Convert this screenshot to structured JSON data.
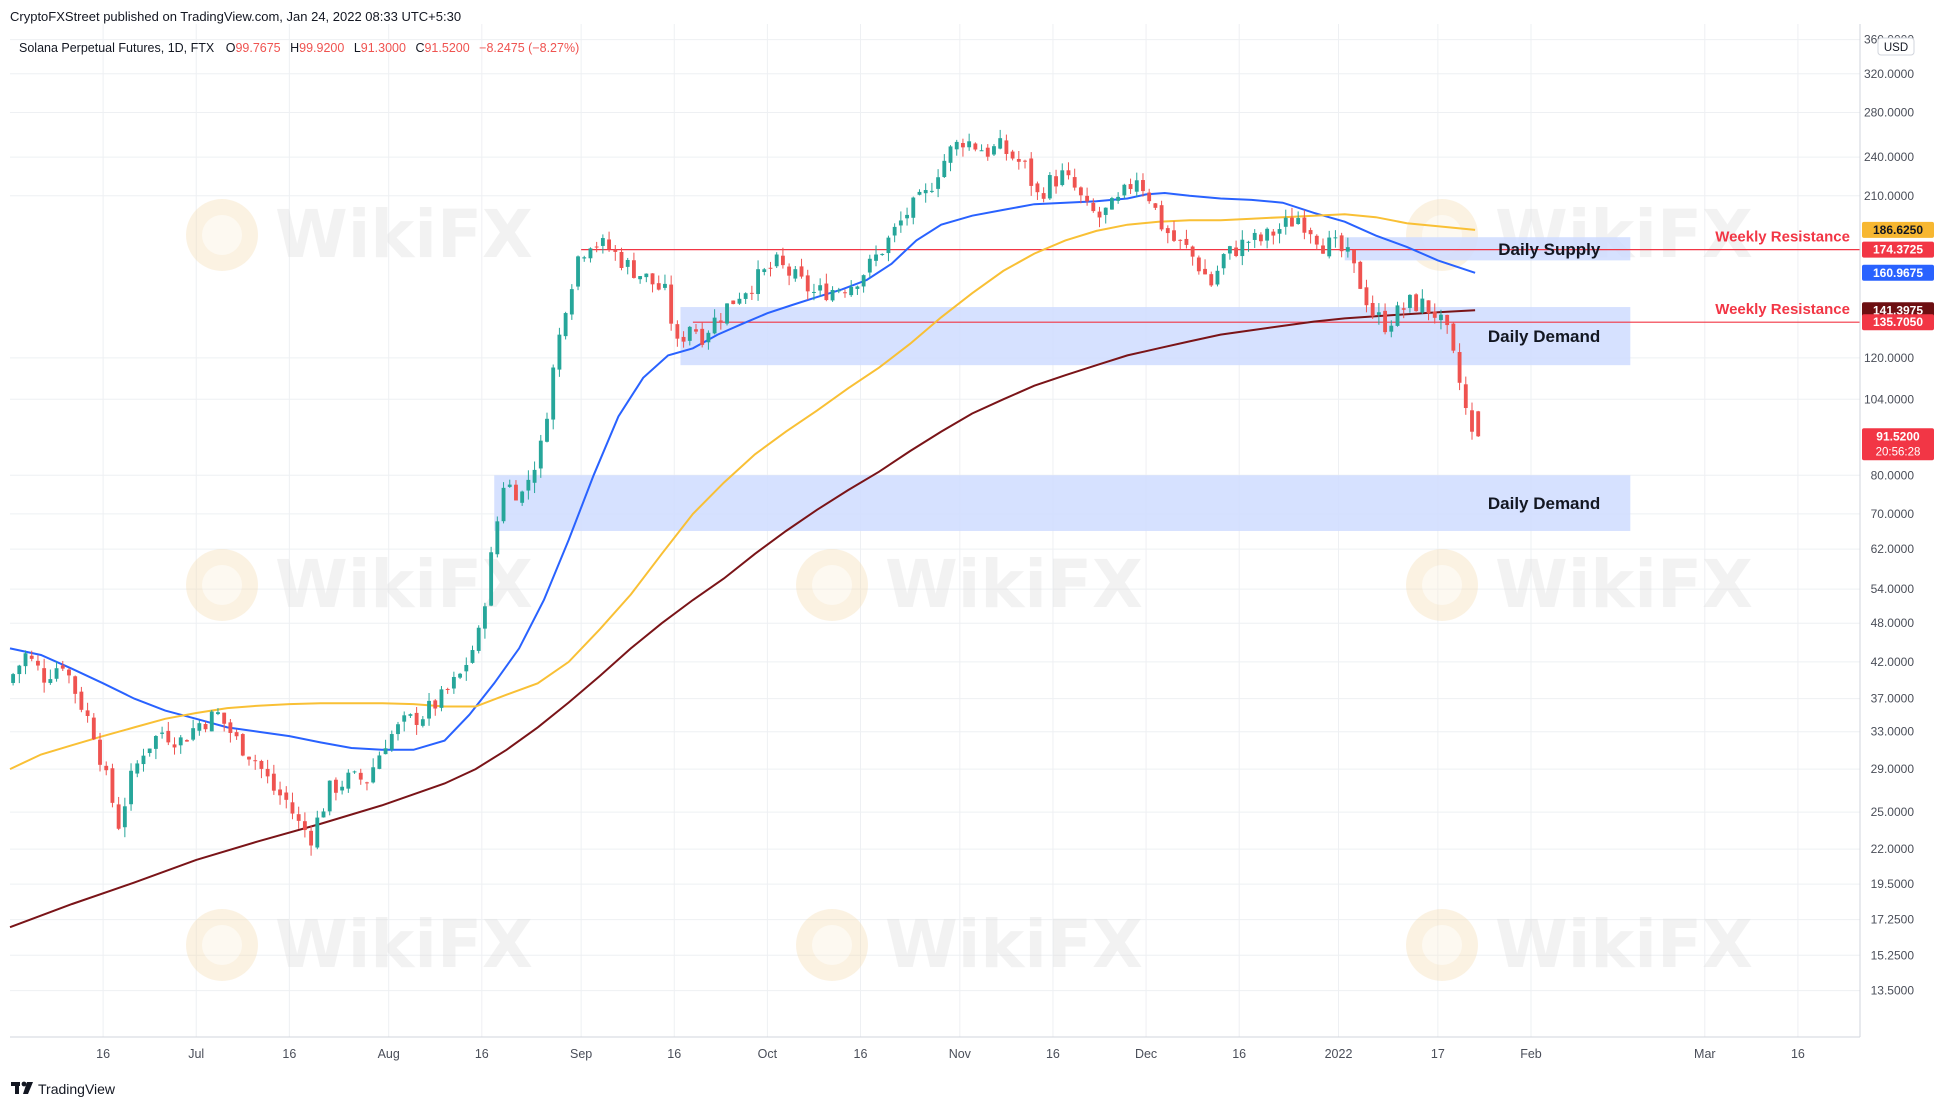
{
  "header": {
    "published": "CryptoFXStreet published on TradingView.com, Jan 24, 2022 08:33 UTC+5:30",
    "symbol": "Solana Perpetual Futures, 1D, FTX",
    "o_label": "O",
    "o": "99.7675",
    "h_label": "H",
    "h": "99.9200",
    "l_label": "L",
    "l": "91.3000",
    "c_label": "C",
    "c": "91.5200",
    "change": "−8.2475 (−8.27%)"
  },
  "footer": {
    "brand": "TradingView"
  },
  "watermark": {
    "text": "WikiFX"
  },
  "chart_data": {
    "type": "candlestick",
    "y_scale": "log",
    "ylim": [
      11.5,
      380
    ],
    "currency": "USD",
    "grid": true,
    "y_ticks": [
      13.5,
      15.25,
      17.25,
      19.5,
      22,
      25,
      29,
      33,
      37,
      42,
      48,
      54,
      62,
      70,
      80,
      104,
      120,
      210,
      240,
      280,
      320,
      360
    ],
    "y_tick_labels": [
      "13.5000",
      "15.2500",
      "17.2500",
      "19.5000",
      "22.0000",
      "25.0000",
      "29.0000",
      "33.0000",
      "37.0000",
      "42.0000",
      "48.0000",
      "54.0000",
      "62.0000",
      "70.0000",
      "80.0000",
      "104.0000",
      "120.0000",
      "210.0000",
      "240.0000",
      "280.0000",
      "320.0000",
      "360.0000"
    ],
    "x_ticks": [
      {
        "d": 15,
        "label": "16"
      },
      {
        "d": 30,
        "label": "Jul"
      },
      {
        "d": 45,
        "label": "16"
      },
      {
        "d": 61,
        "label": "Aug"
      },
      {
        "d": 76,
        "label": "16"
      },
      {
        "d": 92,
        "label": "Sep"
      },
      {
        "d": 107,
        "label": "16"
      },
      {
        "d": 122,
        "label": "Oct"
      },
      {
        "d": 137,
        "label": "16"
      },
      {
        "d": 153,
        "label": "Nov"
      },
      {
        "d": 168,
        "label": "16"
      },
      {
        "d": 183,
        "label": "Dec"
      },
      {
        "d": 198,
        "label": "16"
      },
      {
        "d": 214,
        "label": "2022"
      },
      {
        "d": 230,
        "label": "17"
      },
      {
        "d": 245,
        "label": "Feb"
      },
      {
        "d": 273,
        "label": "Mar"
      },
      {
        "d": 288,
        "label": "16"
      }
    ],
    "x_range_days": [
      0,
      298
    ],
    "price_points": [
      [
        0,
        39
      ],
      [
        3,
        43
      ],
      [
        6,
        40
      ],
      [
        9,
        42
      ],
      [
        11,
        38
      ],
      [
        14,
        33
      ],
      [
        16,
        28
      ],
      [
        18,
        24
      ],
      [
        20,
        28
      ],
      [
        22,
        31
      ],
      [
        25,
        33
      ],
      [
        28,
        32
      ],
      [
        31,
        34
      ],
      [
        34,
        35
      ],
      [
        37,
        32
      ],
      [
        40,
        30
      ],
      [
        43,
        27
      ],
      [
        45,
        26
      ],
      [
        47,
        24
      ],
      [
        49,
        23
      ],
      [
        52,
        27
      ],
      [
        55,
        28
      ],
      [
        58,
        28
      ],
      [
        61,
        32
      ],
      [
        64,
        34
      ],
      [
        67,
        35
      ],
      [
        70,
        37
      ],
      [
        73,
        40
      ],
      [
        76,
        46
      ],
      [
        78,
        60
      ],
      [
        80,
        78
      ],
      [
        83,
        75
      ],
      [
        86,
        88
      ],
      [
        88,
        115
      ],
      [
        90,
        145
      ],
      [
        92,
        170
      ],
      [
        94,
        180
      ],
      [
        97,
        175
      ],
      [
        100,
        165
      ],
      [
        103,
        158
      ],
      [
        106,
        150
      ],
      [
        108,
        125
      ],
      [
        110,
        135
      ],
      [
        112,
        130
      ],
      [
        115,
        140
      ],
      [
        118,
        150
      ],
      [
        121,
        158
      ],
      [
        124,
        166
      ],
      [
        127,
        158
      ],
      [
        130,
        150
      ],
      [
        133,
        152
      ],
      [
        136,
        155
      ],
      [
        139,
        165
      ],
      [
        142,
        180
      ],
      [
        145,
        198
      ],
      [
        148,
        210
      ],
      [
        150,
        230
      ],
      [
        152,
        245
      ],
      [
        154,
        255
      ],
      [
        156,
        250
      ],
      [
        158,
        245
      ],
      [
        160,
        248
      ],
      [
        162,
        240
      ],
      [
        164,
        232
      ],
      [
        166,
        210
      ],
      [
        168,
        220
      ],
      [
        170,
        225
      ],
      [
        172,
        215
      ],
      [
        174,
        200
      ],
      [
        176,
        195
      ],
      [
        179,
        205
      ],
      [
        182,
        225
      ],
      [
        184,
        210
      ],
      [
        186,
        190
      ],
      [
        188,
        180
      ],
      [
        190,
        175
      ],
      [
        192,
        165
      ],
      [
        194,
        155
      ],
      [
        196,
        170
      ],
      [
        198,
        175
      ],
      [
        200,
        180
      ],
      [
        202,
        180
      ],
      [
        204,
        185
      ],
      [
        206,
        190
      ],
      [
        208,
        195
      ],
      [
        210,
        188
      ],
      [
        212,
        178
      ],
      [
        214,
        176
      ],
      [
        216,
        170
      ],
      [
        218,
        155
      ],
      [
        220,
        140
      ],
      [
        222,
        135
      ],
      [
        224,
        140
      ],
      [
        226,
        145
      ],
      [
        228,
        144
      ],
      [
        230,
        140
      ],
      [
        232,
        130
      ],
      [
        234,
        110
      ],
      [
        235,
        100
      ],
      [
        236,
        91.5
      ]
    ],
    "last_candle": {
      "date": "Jan 24, 2022",
      "open": 99.7675,
      "high": 99.92,
      "low": 91.3,
      "close": 91.52
    },
    "moving_averages": [
      {
        "color": "#2962ff",
        "points": [
          [
            0,
            44
          ],
          [
            5,
            43
          ],
          [
            10,
            41
          ],
          [
            15,
            39
          ],
          [
            20,
            37
          ],
          [
            25,
            35.5
          ],
          [
            30,
            34.5
          ],
          [
            35,
            33.5
          ],
          [
            40,
            33
          ],
          [
            45,
            32.5
          ],
          [
            50,
            31.8
          ],
          [
            55,
            31.2
          ],
          [
            60,
            31
          ],
          [
            65,
            31
          ],
          [
            70,
            32
          ],
          [
            74,
            35
          ],
          [
            78,
            39
          ],
          [
            82,
            44
          ],
          [
            86,
            52
          ],
          [
            90,
            64
          ],
          [
            94,
            80
          ],
          [
            98,
            98
          ],
          [
            102,
            112
          ],
          [
            106,
            121
          ],
          [
            110,
            124
          ],
          [
            114,
            130
          ],
          [
            118,
            135
          ],
          [
            122,
            140
          ],
          [
            126,
            144
          ],
          [
            130,
            148
          ],
          [
            134,
            152
          ],
          [
            138,
            157
          ],
          [
            142,
            166
          ],
          [
            146,
            180
          ],
          [
            150,
            190
          ],
          [
            155,
            196
          ],
          [
            160,
            200
          ],
          [
            165,
            204
          ],
          [
            170,
            205
          ],
          [
            175,
            206
          ],
          [
            180,
            208
          ],
          [
            183,
            211
          ],
          [
            186,
            212
          ],
          [
            190,
            210
          ],
          [
            195,
            208
          ],
          [
            200,
            207
          ],
          [
            205,
            205
          ],
          [
            210,
            198
          ],
          [
            215,
            192
          ],
          [
            220,
            183
          ],
          [
            225,
            176
          ],
          [
            230,
            168
          ],
          [
            236,
            160.97
          ]
        ]
      },
      {
        "color": "#f9c035",
        "points": [
          [
            0,
            29
          ],
          [
            5,
            30.5
          ],
          [
            10,
            31.5
          ],
          [
            15,
            32.5
          ],
          [
            20,
            33.5
          ],
          [
            25,
            34.5
          ],
          [
            30,
            35.2
          ],
          [
            35,
            35.8
          ],
          [
            40,
            36.1
          ],
          [
            45,
            36.3
          ],
          [
            50,
            36.4
          ],
          [
            55,
            36.4
          ],
          [
            60,
            36.4
          ],
          [
            65,
            36.3
          ],
          [
            70,
            36
          ],
          [
            75,
            36
          ],
          [
            80,
            37.5
          ],
          [
            85,
            39
          ],
          [
            90,
            42
          ],
          [
            95,
            47
          ],
          [
            100,
            53
          ],
          [
            105,
            61
          ],
          [
            110,
            70
          ],
          [
            115,
            78
          ],
          [
            120,
            86
          ],
          [
            125,
            93
          ],
          [
            130,
            100
          ],
          [
            135,
            108
          ],
          [
            140,
            116
          ],
          [
            145,
            126
          ],
          [
            150,
            138
          ],
          [
            155,
            150
          ],
          [
            160,
            162
          ],
          [
            165,
            172
          ],
          [
            170,
            180
          ],
          [
            175,
            186
          ],
          [
            180,
            190
          ],
          [
            185,
            192
          ],
          [
            190,
            193
          ],
          [
            195,
            193
          ],
          [
            200,
            194
          ],
          [
            205,
            195
          ],
          [
            210,
            196
          ],
          [
            215,
            197
          ],
          [
            220,
            195
          ],
          [
            225,
            191
          ],
          [
            230,
            189
          ],
          [
            236,
            186.63
          ]
        ]
      },
      {
        "color": "#7a1418",
        "points": [
          [
            0,
            16.8
          ],
          [
            10,
            18.2
          ],
          [
            20,
            19.6
          ],
          [
            30,
            21.2
          ],
          [
            40,
            22.6
          ],
          [
            50,
            24
          ],
          [
            60,
            25.6
          ],
          [
            70,
            27.6
          ],
          [
            75,
            29
          ],
          [
            80,
            31
          ],
          [
            85,
            33.5
          ],
          [
            90,
            36.5
          ],
          [
            95,
            40
          ],
          [
            100,
            44
          ],
          [
            105,
            48
          ],
          [
            110,
            52
          ],
          [
            115,
            56
          ],
          [
            120,
            61
          ],
          [
            125,
            66
          ],
          [
            130,
            71
          ],
          [
            135,
            76
          ],
          [
            140,
            81
          ],
          [
            145,
            87
          ],
          [
            150,
            93
          ],
          [
            155,
            99
          ],
          [
            160,
            104
          ],
          [
            165,
            109
          ],
          [
            170,
            113
          ],
          [
            175,
            117
          ],
          [
            180,
            121
          ],
          [
            185,
            124
          ],
          [
            190,
            127
          ],
          [
            195,
            130
          ],
          [
            200,
            132
          ],
          [
            205,
            134
          ],
          [
            210,
            136
          ],
          [
            215,
            137.5
          ],
          [
            220,
            138.5
          ],
          [
            225,
            139.5
          ],
          [
            230,
            140.5
          ],
          [
            236,
            141.4
          ]
        ]
      }
    ],
    "zones": [
      {
        "label": "Daily Supply",
        "from_day": 215,
        "to_day": 261,
        "low": 168,
        "high": 182
      },
      {
        "label": "Daily Demand",
        "from_day": 108,
        "to_day": 261,
        "low": 117,
        "high": 143
      },
      {
        "label": "Daily Demand",
        "from_day": 78,
        "to_day": 261,
        "low": 66,
        "high": 80
      }
    ],
    "horizontal_lines": [
      {
        "label": "Weekly Resistance",
        "price": 174.3725,
        "from_day": 92
      },
      {
        "label": "Weekly Resistance",
        "price": 135.705,
        "from_day": 110
      }
    ],
    "price_labels": [
      {
        "value": 186.625,
        "text": "186.6250",
        "bg": "#f7b731",
        "fg": "#131722"
      },
      {
        "value": 174.3725,
        "text": "174.3725",
        "bg": "#f23645",
        "fg": "#ffffff"
      },
      {
        "value": 160.9675,
        "text": "160.9675",
        "bg": "#2962ff",
        "fg": "#ffffff"
      },
      {
        "value": 141.3975,
        "text": "141.3975",
        "bg": "#6d0f12",
        "fg": "#ffffff"
      },
      {
        "value": 135.705,
        "text": "135.7050",
        "bg": "#f23645",
        "fg": "#ffffff"
      },
      {
        "value": 91.52,
        "text": "91.5200",
        "bg": "#f23645",
        "fg": "#ffffff",
        "sub": "20:56:28"
      }
    ],
    "colors": {
      "up": "#26a69a",
      "down": "#ef5350",
      "resistance": "#f23645",
      "zone": "#cfdcff",
      "grid": "#eef0f3",
      "axis": "#4a4e59"
    }
  }
}
